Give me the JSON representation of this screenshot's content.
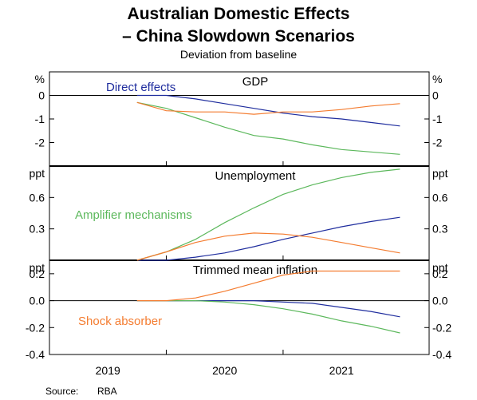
{
  "chart_data": {
    "type": "line",
    "title_line1": "Australian Domestic Effects",
    "title_line2": "– China Slowdown Scenarios",
    "subtitle": "Deviation from baseline",
    "source_label": "Source:",
    "source_value": "RBA",
    "x_axis": {
      "range": [
        2018.5,
        2021.75
      ],
      "tick_labels": [
        "2019",
        "2020",
        "2021"
      ],
      "tick_positions": [
        2019.0,
        2020.0,
        2021.0
      ],
      "year_boundaries": [
        2019.5,
        2020.5
      ]
    },
    "grid": false,
    "panels": [
      {
        "title": "GDP",
        "unit": "%",
        "ylim": [
          -3,
          1
        ],
        "ticks": [
          0,
          -1,
          -2
        ],
        "tick_labels": [
          "0",
          "-1",
          "-2"
        ],
        "series": [
          {
            "name": "Direct effects",
            "color": "#1f2d9e",
            "x": [
              2019.25,
              2019.5,
              2019.75,
              2020.0,
              2020.25,
              2020.5,
              2020.75,
              2021.0,
              2021.25,
              2021.5
            ],
            "y": [
              0.0,
              0.0,
              -0.15,
              -0.35,
              -0.55,
              -0.75,
              -0.9,
              -1.0,
              -1.15,
              -1.3
            ]
          },
          {
            "name": "Amplifier mechanisms",
            "color": "#5cb85c",
            "x": [
              2019.25,
              2019.5,
              2019.75,
              2020.0,
              2020.25,
              2020.5,
              2020.75,
              2021.0,
              2021.25,
              2021.5
            ],
            "y": [
              -0.3,
              -0.55,
              -0.95,
              -1.35,
              -1.7,
              -1.85,
              -2.1,
              -2.3,
              -2.4,
              -2.5
            ]
          },
          {
            "name": "Shock absorber",
            "color": "#f47c30",
            "x": [
              2019.25,
              2019.5,
              2019.75,
              2020.0,
              2020.25,
              2020.5,
              2020.75,
              2021.0,
              2021.25,
              2021.5
            ],
            "y": [
              -0.3,
              -0.65,
              -0.7,
              -0.7,
              -0.8,
              -0.7,
              -0.7,
              -0.6,
              -0.45,
              -0.35
            ]
          }
        ]
      },
      {
        "title": "Unemployment",
        "unit": "ppt",
        "ylim": [
          0,
          0.9
        ],
        "ticks": [
          0.3,
          0.6
        ],
        "tick_labels": [
          "0.3",
          "0.6"
        ],
        "series": [
          {
            "name": "Direct effects",
            "color": "#1f2d9e",
            "x": [
              2019.25,
              2019.5,
              2019.75,
              2020.0,
              2020.25,
              2020.5,
              2020.75,
              2021.0,
              2021.25,
              2021.5
            ],
            "y": [
              0.0,
              0.0,
              0.03,
              0.07,
              0.13,
              0.2,
              0.26,
              0.32,
              0.37,
              0.41
            ]
          },
          {
            "name": "Amplifier mechanisms",
            "color": "#5cb85c",
            "x": [
              2019.25,
              2019.5,
              2019.75,
              2020.0,
              2020.25,
              2020.5,
              2020.75,
              2021.0,
              2021.25,
              2021.5
            ],
            "y": [
              0.0,
              0.08,
              0.2,
              0.36,
              0.5,
              0.63,
              0.72,
              0.79,
              0.84,
              0.87
            ]
          },
          {
            "name": "Shock absorber",
            "color": "#f47c30",
            "x": [
              2019.25,
              2019.5,
              2019.75,
              2020.0,
              2020.25,
              2020.5,
              2020.75,
              2021.0,
              2021.25,
              2021.5
            ],
            "y": [
              0.0,
              0.08,
              0.17,
              0.23,
              0.26,
              0.25,
              0.22,
              0.17,
              0.12,
              0.07
            ]
          }
        ]
      },
      {
        "title": "Trimmed mean inflation",
        "unit": "ppt",
        "ylim": [
          -0.4,
          0.3
        ],
        "ticks": [
          0.2,
          0.0,
          -0.2,
          -0.4
        ],
        "tick_labels": [
          "0.2",
          "0.0",
          "-0.2",
          "-0.4"
        ],
        "series": [
          {
            "name": "Direct effects",
            "color": "#1f2d9e",
            "x": [
              2019.25,
              2019.5,
              2019.75,
              2020.0,
              2020.25,
              2020.5,
              2020.75,
              2021.0,
              2021.25,
              2021.5
            ],
            "y": [
              0.0,
              0.0,
              0.0,
              0.0,
              0.0,
              -0.01,
              -0.02,
              -0.05,
              -0.08,
              -0.12
            ]
          },
          {
            "name": "Amplifier mechanisms",
            "color": "#5cb85c",
            "x": [
              2019.25,
              2019.5,
              2019.75,
              2020.0,
              2020.25,
              2020.5,
              2020.75,
              2021.0,
              2021.25,
              2021.5
            ],
            "y": [
              0.0,
              0.0,
              0.0,
              -0.01,
              -0.03,
              -0.06,
              -0.1,
              -0.15,
              -0.19,
              -0.24
            ]
          },
          {
            "name": "Shock absorber",
            "color": "#f47c30",
            "x": [
              2019.25,
              2019.5,
              2019.75,
              2020.0,
              2020.25,
              2020.5,
              2020.75,
              2021.0,
              2021.25,
              2021.5
            ],
            "y": [
              0.0,
              0.0,
              0.02,
              0.07,
              0.13,
              0.19,
              0.22,
              0.22,
              0.22,
              0.22
            ]
          }
        ]
      }
    ],
    "annotations": [
      {
        "text": "Direct effects",
        "color": "#1f2d9e"
      },
      {
        "text": "Amplifier mechanisms",
        "color": "#5cb85c"
      },
      {
        "text": "Shock absorber",
        "color": "#f47c30"
      }
    ]
  }
}
